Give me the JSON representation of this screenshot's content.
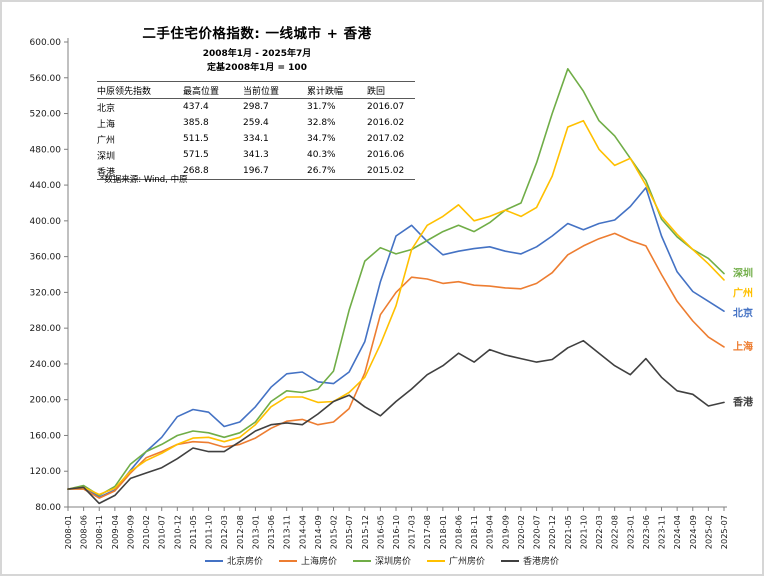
{
  "header": {
    "title": "二手住宅价格指数: 一线城市 + 香港",
    "subtitle_period": "2008年1月 - 2025年7月",
    "subtitle_base": "定基2008年1月 = 100"
  },
  "table": {
    "columns": [
      "中原领先指数",
      "最高位置",
      "当前位置",
      "累计跌幅",
      "跌回"
    ],
    "rows": [
      [
        "北京",
        "437.4",
        "298.7",
        "31.7%",
        "2016.07"
      ],
      [
        "上海",
        "385.8",
        "259.4",
        "32.8%",
        "2016.02"
      ],
      [
        "广州",
        "511.5",
        "334.1",
        "34.7%",
        "2017.02"
      ],
      [
        "深圳",
        "571.5",
        "341.3",
        "40.3%",
        "2016.06"
      ],
      [
        "香港",
        "268.8",
        "196.7",
        "26.7%",
        "2015.02"
      ]
    ],
    "footnote": "*数据来源: Wind, 中原"
  },
  "chart_data": {
    "type": "line",
    "title": "二手住宅价格指数: 一线城市 + 香港",
    "subtitle": "2008年1月 - 2025年7月 定基2008年1月 = 100",
    "xlabel": "",
    "ylabel": "",
    "ylim": [
      80,
      600
    ],
    "ytick_step": 40,
    "grid": false,
    "legend_position": "bottom",
    "categories": [
      "2008-01",
      "2008-06",
      "2008-11",
      "2009-04",
      "2009-09",
      "2010-02",
      "2010-07",
      "2010-12",
      "2011-05",
      "2011-10",
      "2012-03",
      "2012-08",
      "2013-01",
      "2013-06",
      "2013-11",
      "2014-04",
      "2014-09",
      "2015-02",
      "2015-07",
      "2015-12",
      "2016-05",
      "2016-10",
      "2017-03",
      "2017-08",
      "2018-01",
      "2018-06",
      "2018-11",
      "2019-04",
      "2019-09",
      "2020-02",
      "2020-07",
      "2020-12",
      "2021-05",
      "2021-10",
      "2022-03",
      "2022-08",
      "2023-01",
      "2023-06",
      "2023-11",
      "2024-04",
      "2024-09",
      "2025-02",
      "2025-07"
    ],
    "series": [
      {
        "name": "北京房价",
        "short_label": "北京",
        "color": "#4472C4",
        "values": [
          100,
          102,
          91,
          99,
          121,
          142,
          158,
          181,
          189,
          186,
          170,
          175,
          192,
          214,
          229,
          231,
          220,
          218,
          231,
          265,
          332,
          383,
          395,
          377,
          362,
          366,
          369,
          371,
          366,
          363,
          371,
          383,
          397,
          390,
          397,
          401,
          416,
          437,
          383,
          343,
          321,
          310,
          299
        ]
      },
      {
        "name": "上海房价",
        "short_label": "上海",
        "color": "#ED7D31",
        "values": [
          100,
          100,
          90,
          98,
          118,
          135,
          142,
          150,
          153,
          152,
          147,
          150,
          157,
          168,
          176,
          178,
          172,
          175,
          190,
          230,
          295,
          320,
          337,
          335,
          330,
          332,
          328,
          327,
          325,
          324,
          330,
          342,
          362,
          372,
          380,
          386,
          378,
          372,
          340,
          310,
          288,
          270,
          259
        ]
      },
      {
        "name": "深圳房价",
        "short_label": "深圳",
        "color": "#70AD47",
        "values": [
          100,
          104,
          93,
          103,
          128,
          142,
          150,
          160,
          165,
          163,
          158,
          163,
          175,
          198,
          210,
          208,
          212,
          232,
          300,
          355,
          370,
          363,
          368,
          378,
          388,
          395,
          388,
          398,
          412,
          420,
          465,
          520,
          570,
          545,
          512,
          495,
          470,
          445,
          402,
          382,
          368,
          358,
          341
        ]
      },
      {
        "name": "广州房价",
        "short_label": "广州",
        "color": "#FFC000",
        "values": [
          100,
          102,
          94,
          101,
          120,
          132,
          140,
          150,
          157,
          158,
          153,
          158,
          172,
          192,
          203,
          203,
          197,
          198,
          208,
          225,
          262,
          305,
          368,
          395,
          405,
          418,
          400,
          405,
          412,
          405,
          415,
          450,
          505,
          512,
          480,
          462,
          470,
          440,
          405,
          385,
          368,
          352,
          334
        ]
      },
      {
        "name": "香港房价",
        "short_label": "香港",
        "color": "#404040",
        "values": [
          100,
          102,
          84,
          93,
          112,
          118,
          124,
          134,
          146,
          142,
          142,
          153,
          165,
          172,
          174,
          172,
          184,
          198,
          205,
          192,
          182,
          198,
          212,
          228,
          238,
          252,
          242,
          256,
          250,
          246,
          242,
          245,
          258,
          266,
          252,
          238,
          228,
          246,
          225,
          210,
          206,
          193,
          197
        ]
      }
    ]
  }
}
